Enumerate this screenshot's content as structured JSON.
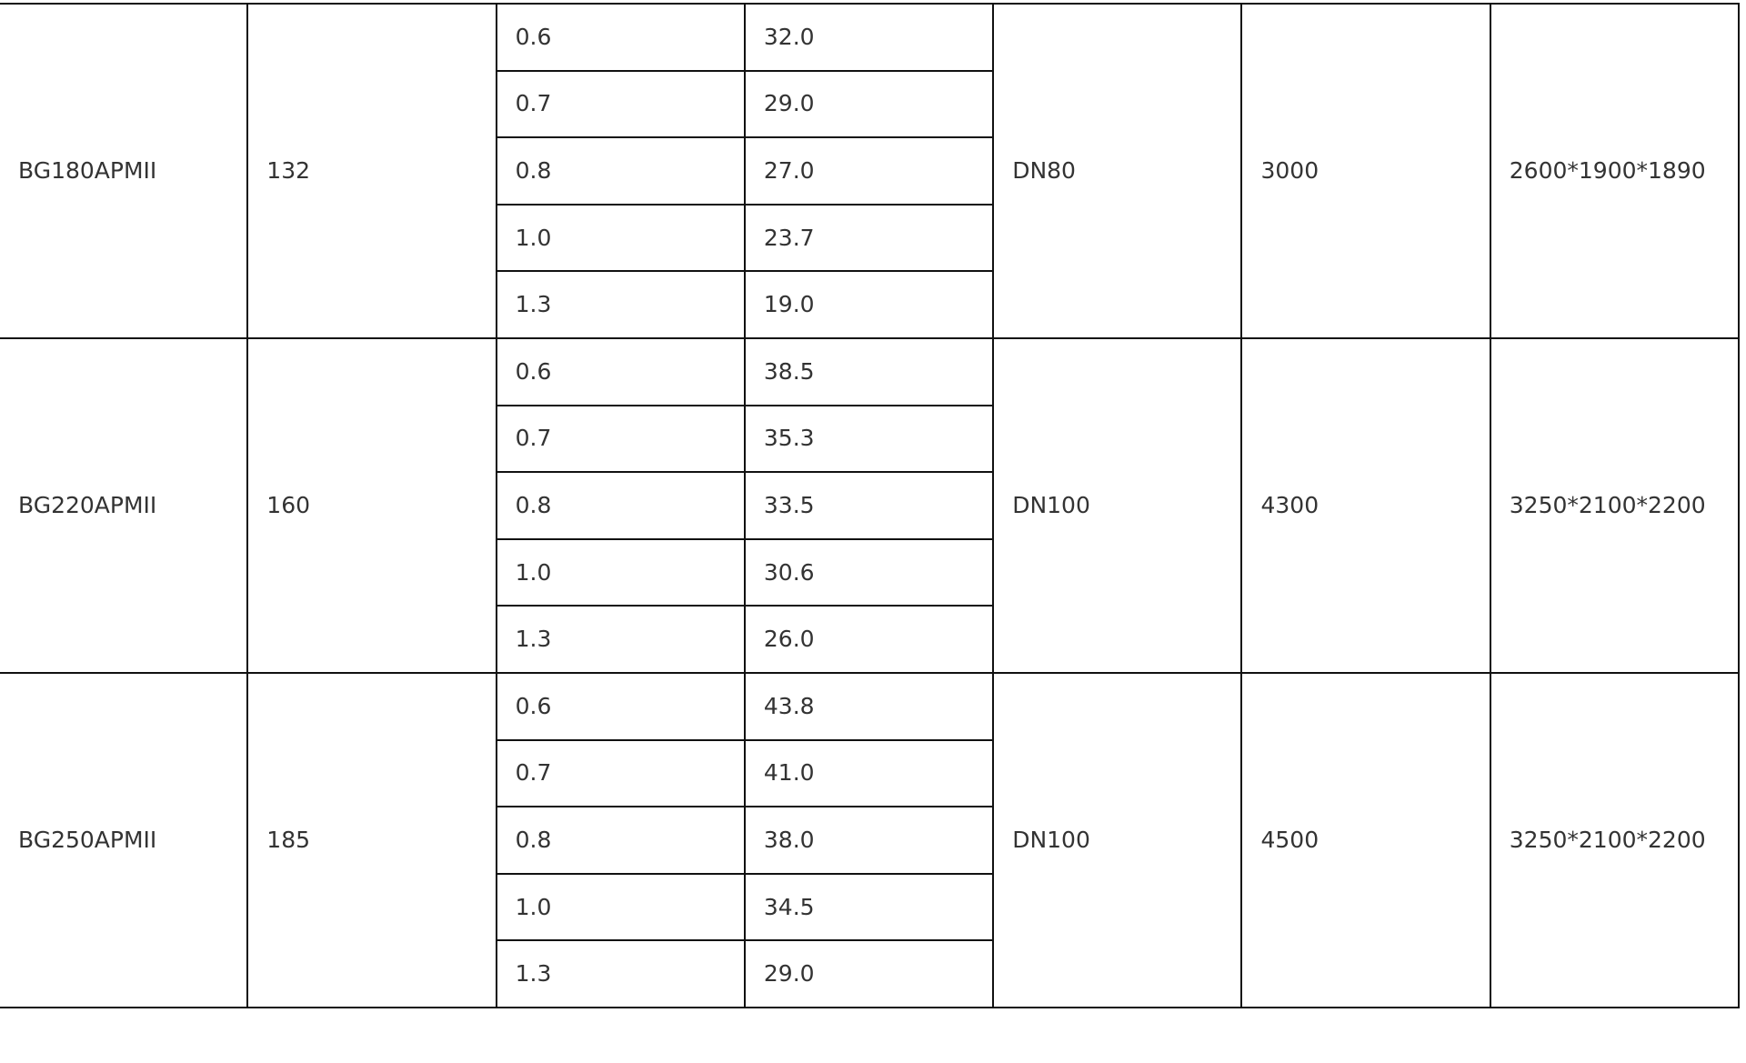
{
  "rows": [
    {
      "model": "BG180APMII",
      "power": "132",
      "pairs": [
        [
          "0.6",
          "32.0"
        ],
        [
          "0.7",
          "29.0"
        ],
        [
          "0.8",
          "27.0"
        ],
        [
          "1.0",
          "23.7"
        ],
        [
          "1.3",
          "19.0"
        ]
      ],
      "outlet": "DN80",
      "weight": "3000",
      "dimensions": "2600*1900*1890"
    },
    {
      "model": "BG220APMII",
      "power": "160",
      "pairs": [
        [
          "0.6",
          "38.5"
        ],
        [
          "0.7",
          "35.3"
        ],
        [
          "0.8",
          "33.5"
        ],
        [
          "1.0",
          "30.6"
        ],
        [
          "1.3",
          "26.0"
        ]
      ],
      "outlet": "DN100",
      "weight": "4300",
      "dimensions": "3250*2100*2200"
    },
    {
      "model": "BG250APMII",
      "power": "185",
      "pairs": [
        [
          "0.6",
          "43.8"
        ],
        [
          "0.7",
          "41.0"
        ],
        [
          "0.8",
          "38.0"
        ],
        [
          "1.0",
          "34.5"
        ],
        [
          "1.3",
          "29.0"
        ]
      ],
      "outlet": "DN100",
      "weight": "4500",
      "dimensions": "3250*2100*2200"
    }
  ]
}
